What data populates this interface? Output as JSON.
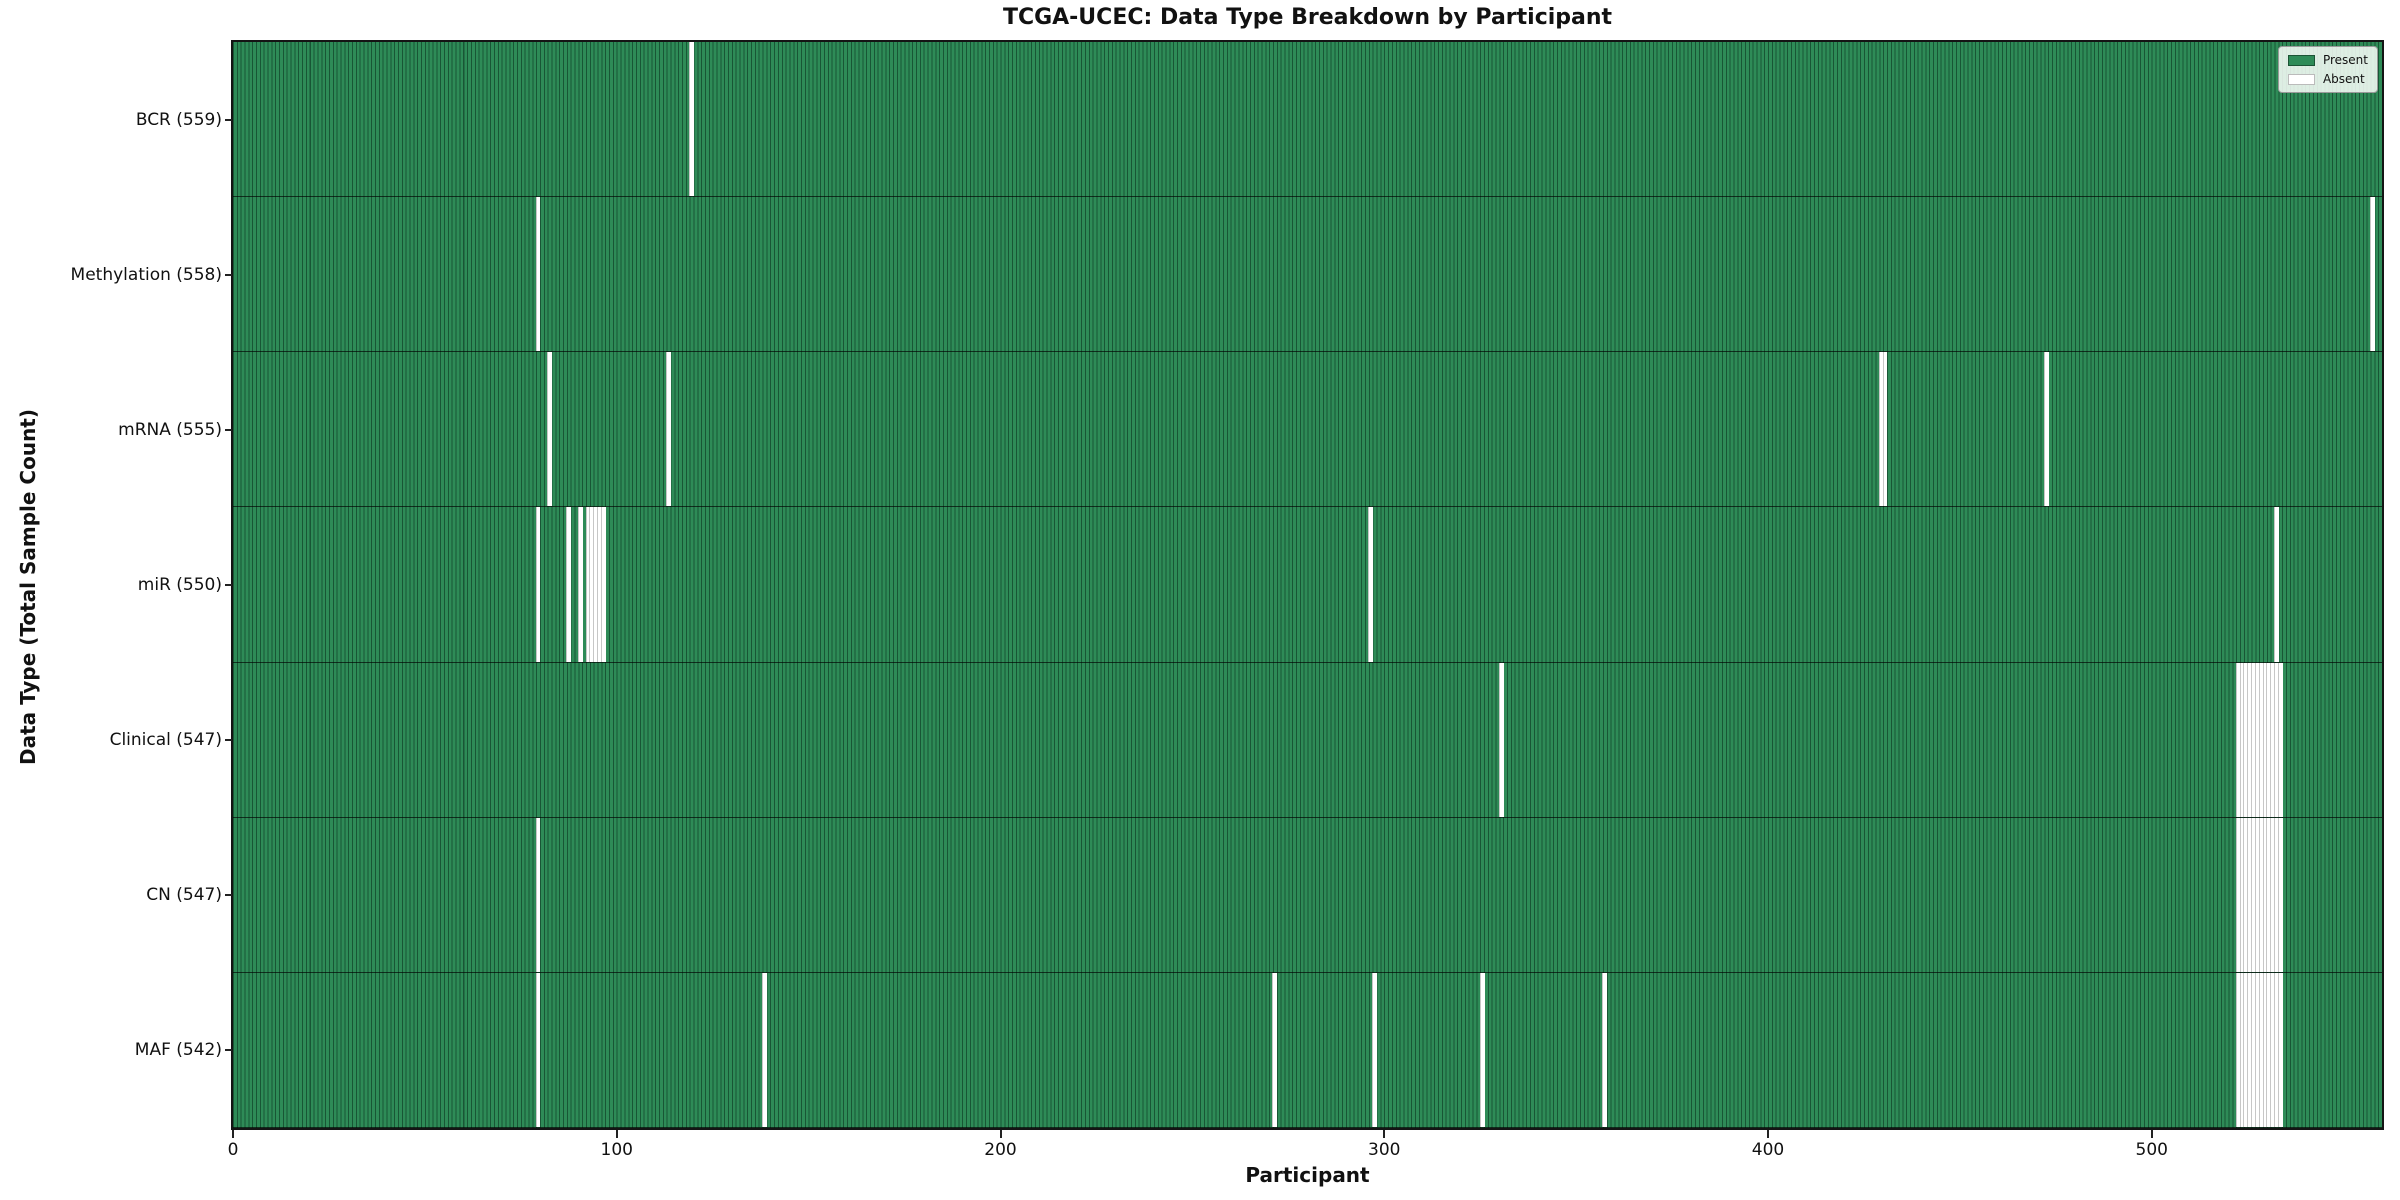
{
  "title": "TCGA-UCEC: Data Type Breakdown by Participant",
  "x_axis": {
    "label": "Participant",
    "ticks": [
      0,
      100,
      200,
      300,
      400,
      500
    ]
  },
  "y_axis": {
    "label": "Data Type (Total Sample Count)"
  },
  "legend": {
    "entries": [
      {
        "label": "Present",
        "color": "#2E8B57",
        "border": "#1B5435"
      },
      {
        "label": "Absent",
        "color": "#FFFFFF",
        "border": "#BBBBBB"
      }
    ]
  },
  "colors": {
    "present": "#2E8B57",
    "absent": "#FFFFFF",
    "bar_edge_dark": "rgba(6,42,25,0.55)",
    "spine": "#141414",
    "background": "#FFFFFF"
  },
  "chart_data": {
    "type": "heatmap",
    "title": "TCGA-UCEC: Data Type Breakdown by Participant",
    "xlabel": "Participant",
    "ylabel": "Data Type (Total Sample Count)",
    "n_participants": 560,
    "xlim": [
      0,
      560
    ],
    "x_ticks": [
      0,
      100,
      200,
      300,
      400,
      500
    ],
    "legend_position": "upper right",
    "grid": false,
    "value_encoding": {
      "present": "green bar",
      "absent": "white gap"
    },
    "rows": [
      {
        "name": "BCR",
        "label": "BCR (559)",
        "total": 559,
        "absent_participants": [
          119
        ]
      },
      {
        "name": "Methylation",
        "label": "Methylation (558)",
        "total": 558,
        "absent_participants": [
          79,
          557
        ]
      },
      {
        "name": "mRNA",
        "label": "mRNA (555)",
        "total": 555,
        "absent_participants": [
          82,
          113,
          429,
          430,
          472
        ]
      },
      {
        "name": "miR",
        "label": "miR (550)",
        "total": 550,
        "absent_participants": [
          79,
          87,
          90,
          92,
          93,
          94,
          95,
          96,
          296,
          532
        ]
      },
      {
        "name": "Clinical",
        "label": "Clinical (547)",
        "total": 547,
        "absent_participants": [
          330,
          522,
          523,
          524,
          525,
          526,
          527,
          528,
          529,
          530,
          531,
          532,
          533
        ]
      },
      {
        "name": "CN",
        "label": "CN (547)",
        "total": 547,
        "absent_participants": [
          79,
          522,
          523,
          524,
          525,
          526,
          527,
          528,
          529,
          530,
          531,
          532,
          533
        ]
      },
      {
        "name": "MAF",
        "label": "MAF (542)",
        "total": 542,
        "absent_participants": [
          79,
          138,
          271,
          297,
          325,
          357,
          522,
          523,
          524,
          525,
          526,
          527,
          528,
          529,
          530,
          531,
          532,
          533
        ]
      }
    ]
  }
}
